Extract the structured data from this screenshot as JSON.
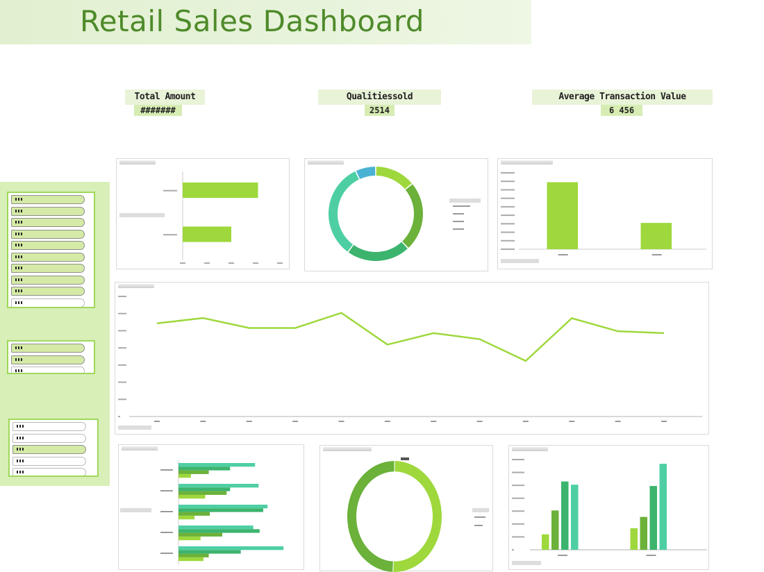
{
  "header": {
    "title": "Retail Sales Dashboard"
  },
  "kpis": [
    {
      "label": "Total Amount",
      "value": "#######"
    },
    {
      "label": "Qualitiessold",
      "value": "2514"
    },
    {
      "label": "Average Transaction Value",
      "value": "6  456"
    }
  ],
  "slicers": [
    {
      "items": [
        {
          "selected": true
        },
        {
          "selected": true
        },
        {
          "selected": true
        },
        {
          "selected": true
        },
        {
          "selected": true
        },
        {
          "selected": true
        },
        {
          "selected": true
        },
        {
          "selected": true
        },
        {
          "selected": true
        },
        {
          "selected": false
        },
        {
          "selected": false
        },
        {
          "selected": false
        }
      ]
    },
    {
      "items": [
        {
          "selected": true
        },
        {
          "selected": true
        },
        {
          "selected": false
        }
      ]
    },
    {
      "items": [
        {
          "selected": false
        },
        {
          "selected": false
        },
        {
          "selected": true
        },
        {
          "selected": false
        },
        {
          "selected": false
        }
      ]
    }
  ],
  "colors": {
    "title": "#4e8a2a",
    "sidebar": "#d8efb8",
    "light_green": "#9ed83c",
    "green": "#6bb13a",
    "dark_green": "#3db46e",
    "teal": "#4ecfa3",
    "blue": "#4ab3d3"
  },
  "chart_data": [
    {
      "type": "bar",
      "orientation": "horizontal",
      "values": [
        3.1,
        2.0
      ],
      "xlim": [
        0,
        4
      ],
      "grid": false
    },
    {
      "type": "pie",
      "donut": true,
      "values": [
        14,
        24,
        22,
        33,
        7
      ],
      "colors": [
        "#9ed83c",
        "#6bb13a",
        "#3db46e",
        "#4ecfa3",
        "#4ab3d3"
      ]
    },
    {
      "type": "bar",
      "values": [
        7.9,
        3.1
      ],
      "ylim": [
        0,
        9
      ],
      "grid": false
    },
    {
      "type": "line",
      "values": [
        5.43,
        5.74,
        5.16,
        5.16,
        6.04,
        4.19,
        4.86,
        4.51,
        3.24,
        5.73,
        4.97,
        4.86
      ],
      "ylim": [
        0,
        7
      ],
      "grid": false
    },
    {
      "type": "bar",
      "orientation": "horizontal",
      "series": [
        {
          "values": [
            2.15,
            2.25,
            2.5,
            2.1,
            2.95
          ]
        },
        {
          "values": [
            1.45,
            1.45,
            2.38,
            2.28,
            1.75
          ]
        },
        {
          "values": [
            0.85,
            1.35,
            0.88,
            1.23,
            0.85
          ]
        },
        {
          "values": [
            0.35,
            0.75,
            0.45,
            0.62,
            0.7
          ]
        }
      ],
      "xlim": [
        0,
        3.2
      ]
    },
    {
      "type": "pie",
      "donut": true,
      "values": [
        50.5,
        49.5
      ],
      "colors": [
        "#9ed83c",
        "#6bb13a"
      ]
    },
    {
      "type": "bar",
      "series": [
        {
          "values": [
            1.2,
            1.67
          ]
        },
        {
          "values": [
            3.05,
            2.55
          ]
        },
        {
          "values": [
            5.3,
            4.95
          ]
        },
        {
          "values": [
            5.05,
            6.67
          ]
        }
      ],
      "ylim": [
        0,
        7
      ]
    }
  ]
}
